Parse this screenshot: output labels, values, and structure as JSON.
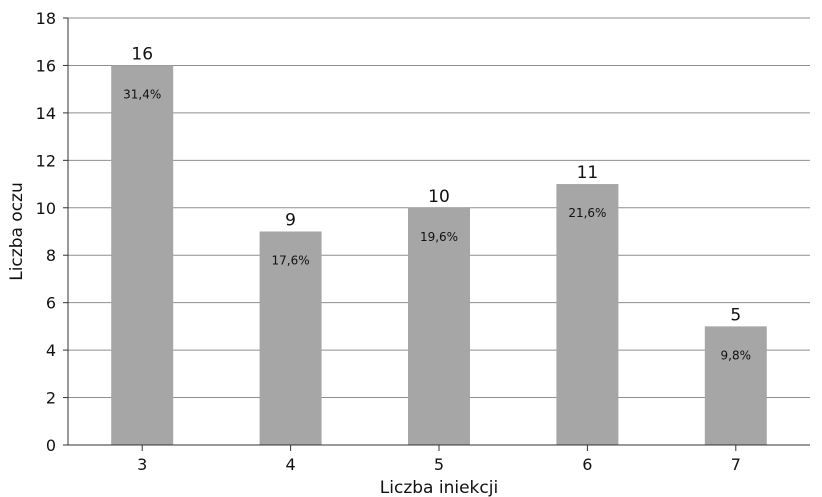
{
  "chart_data": {
    "type": "bar",
    "categories": [
      "3",
      "4",
      "5",
      "6",
      "7"
    ],
    "values": [
      16,
      9,
      10,
      11,
      5
    ],
    "value_labels": [
      "16",
      "9",
      "10",
      "11",
      "5"
    ],
    "percent_labels": [
      "31,4%",
      "17,6%",
      "19,6%",
      "21,6%",
      "9,8%"
    ],
    "xlabel": "Liczba iniekcji",
    "ylabel": "Liczba oczu",
    "ylim": [
      0,
      18
    ],
    "yticks": [
      0,
      2,
      4,
      6,
      8,
      10,
      12,
      14,
      16,
      18
    ],
    "grid": true,
    "bar_color": "#a6a6a6"
  }
}
